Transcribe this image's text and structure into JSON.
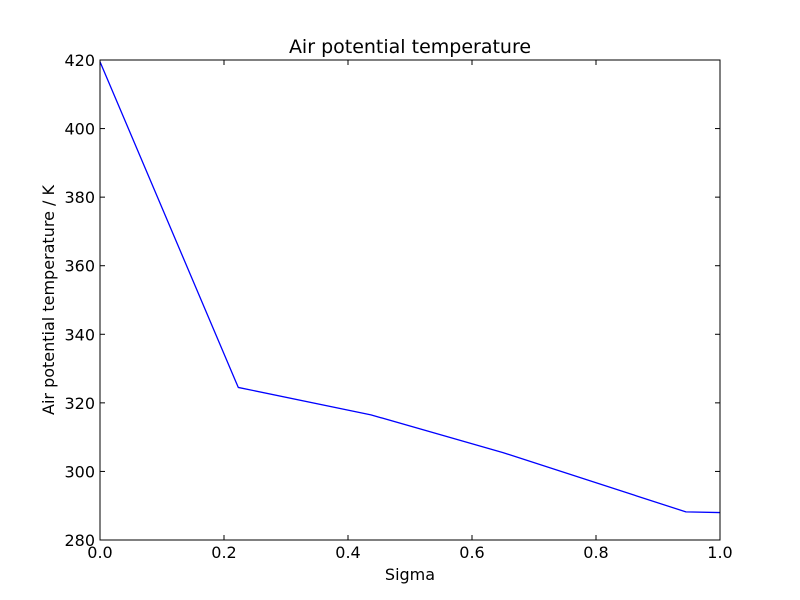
{
  "chart_data": {
    "type": "line",
    "title": "Air potential temperature",
    "xlabel": "Sigma",
    "ylabel": "Air potential temperature / K",
    "xlim": [
      0.0,
      1.0
    ],
    "ylim": [
      280,
      420
    ],
    "xticks": [
      "0.0",
      "0.2",
      "0.4",
      "0.6",
      "0.8",
      "1.0"
    ],
    "yticks": [
      "280",
      "300",
      "320",
      "340",
      "360",
      "380",
      "400",
      "420"
    ],
    "grid": false,
    "series": [
      {
        "color": "#0000ff",
        "x": [
          0.0,
          0.223,
          0.437,
          0.65,
          0.945,
          1.0
        ],
        "y": [
          419.5,
          324.5,
          316.5,
          305.5,
          288.2,
          288.0
        ]
      }
    ]
  }
}
